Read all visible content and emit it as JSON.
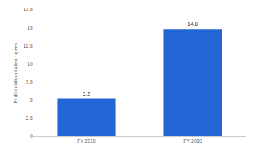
{
  "chart_data": {
    "type": "bar",
    "y_label": "Profit in billion Indian rupees",
    "categories": [
      "FY 2018",
      "FY 2019"
    ],
    "values": [
      5.2,
      14.8
    ],
    "color": "#2266d6",
    "ylim": [
      0,
      17.5
    ],
    "yticks": [
      0,
      2.5,
      5,
      7.5,
      10,
      12.5,
      15,
      17.5
    ],
    "grid": true,
    "data_labels": true
  }
}
